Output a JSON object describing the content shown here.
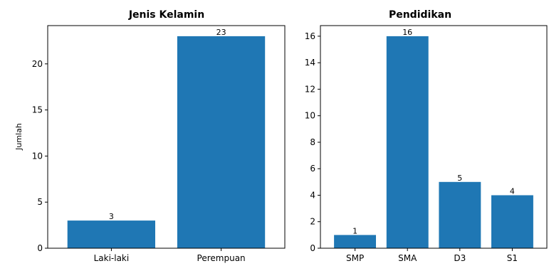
{
  "chart_data": [
    {
      "type": "bar",
      "title": "Jenis Kelamin",
      "xlabel": "",
      "ylabel": "Jumlah",
      "categories": [
        "Laki-laki",
        "Perempuan"
      ],
      "values": [
        3,
        23
      ],
      "bar_labels": [
        "3",
        "23"
      ],
      "ylim": [
        0,
        24.15
      ],
      "yticks": [
        0,
        5,
        10,
        15,
        20
      ],
      "grid": false,
      "legend": "none",
      "bar_color": "#1f77b4"
    },
    {
      "type": "bar",
      "title": "Pendidikan",
      "xlabel": "",
      "ylabel": "",
      "categories": [
        "SMP",
        "SMA",
        "D3",
        "S1"
      ],
      "values": [
        1,
        16,
        5,
        4
      ],
      "bar_labels": [
        "1",
        "16",
        "5",
        "4"
      ],
      "ylim": [
        0,
        16.8
      ],
      "yticks": [
        0,
        2,
        4,
        6,
        8,
        10,
        12,
        14,
        16
      ],
      "grid": false,
      "legend": "none",
      "bar_color": "#1f77b4"
    }
  ]
}
